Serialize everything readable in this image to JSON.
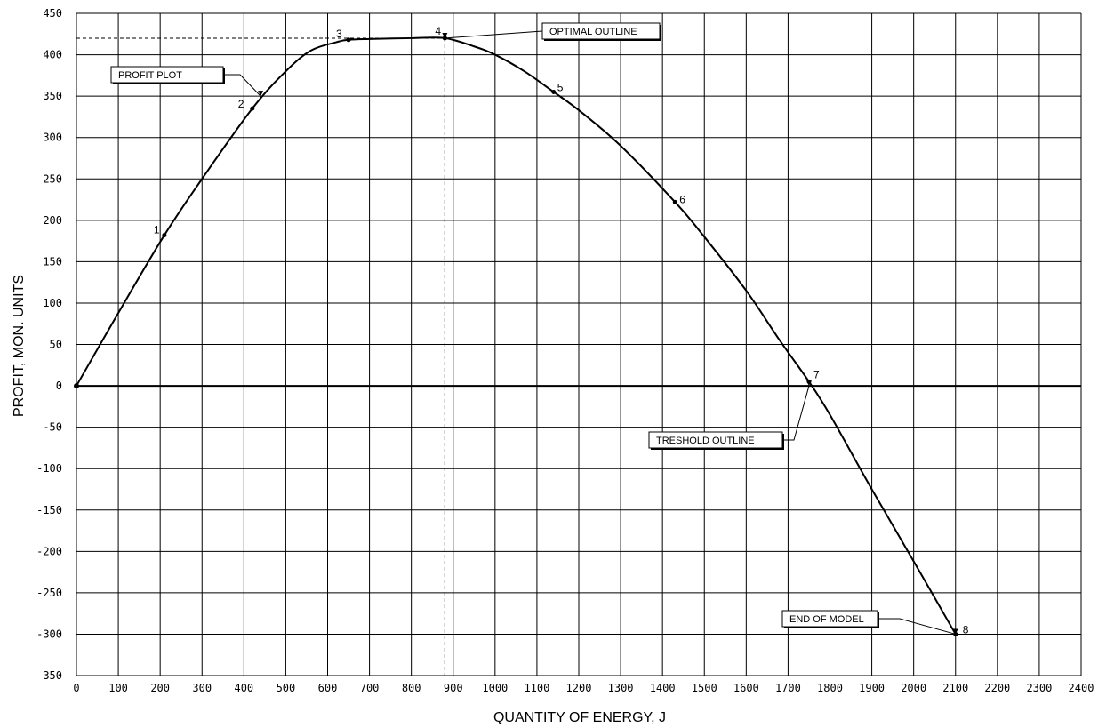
{
  "chart_data": {
    "type": "line",
    "title": "",
    "xlabel": "QUANTITY OF ENERGY, J",
    "ylabel": "PROFIT, MON. UNITS",
    "xlim": [
      0,
      2400
    ],
    "ylim": [
      -350,
      450
    ],
    "x_ticks": [
      0,
      100,
      200,
      300,
      400,
      500,
      600,
      700,
      800,
      900,
      1000,
      1100,
      1200,
      1300,
      1400,
      1500,
      1600,
      1700,
      1800,
      1900,
      2000,
      2100,
      2200,
      2300,
      2400
    ],
    "y_ticks": [
      -350,
      -300,
      -250,
      -200,
      -150,
      -100,
      -50,
      0,
      50,
      100,
      150,
      200,
      250,
      300,
      350,
      400,
      450
    ],
    "grid": true,
    "series": [
      {
        "name": "",
        "x": [
          0,
          100,
          210,
          300,
          420,
          500,
          560,
          620,
          650,
          700,
          800,
          880,
          950,
          1000,
          1070,
          1140,
          1200,
          1300,
          1430,
          1500,
          1600,
          1680,
          1750,
          1800,
          1900,
          2000,
          2100
        ],
        "y": [
          0,
          88,
          182,
          250,
          335,
          380,
          405,
          415,
          418,
          419,
          420,
          420,
          410,
          400,
          380,
          355,
          333,
          290,
          222,
          180,
          115,
          55,
          5,
          -35,
          -125,
          -212,
          -300
        ]
      }
    ],
    "points": [
      {
        "label": "1",
        "x": 210,
        "y": 182
      },
      {
        "label": "2",
        "x": 420,
        "y": 335
      },
      {
        "label": "3",
        "x": 650,
        "y": 418
      },
      {
        "label": "4",
        "x": 880,
        "y": 420
      },
      {
        "label": "5",
        "x": 1140,
        "y": 355
      },
      {
        "label": "6",
        "x": 1430,
        "y": 222
      },
      {
        "label": "7",
        "x": 1750,
        "y": 5
      },
      {
        "label": "8",
        "x": 2100,
        "y": -300
      }
    ],
    "reference_lines": {
      "optimum_x": 880,
      "optimum_y": 420
    },
    "annotations": [
      {
        "text": "PROFIT PLOT",
        "target_x": 440,
        "target_y": 350
      },
      {
        "text": "OPTIMAL OUTLINE",
        "target_x": 880,
        "target_y": 420
      },
      {
        "text": "TRESHOLD OUTLINE",
        "target_x": 1750,
        "target_y": 0
      },
      {
        "text": "END OF MODEL",
        "target_x": 2100,
        "target_y": -300
      }
    ]
  }
}
